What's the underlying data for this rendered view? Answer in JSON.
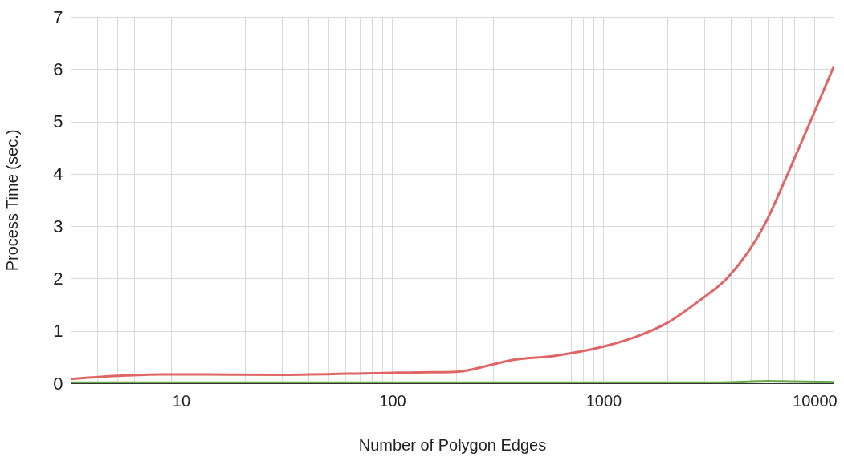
{
  "chart_data": {
    "type": "line",
    "xlabel": "Number of Polygon Edges",
    "ylabel": "Process Time (sec.)",
    "log": "x",
    "grid": true,
    "legend": false,
    "marker": "none",
    "line_style": "solid",
    "xlim": [
      3,
      12300
    ],
    "ylim": [
      0,
      7
    ],
    "xticks": [
      {
        "value": 3,
        "label": null
      },
      {
        "value": 4,
        "label": null
      },
      {
        "value": 5,
        "label": null
      },
      {
        "value": 6,
        "label": null
      },
      {
        "value": 7,
        "label": null
      },
      {
        "value": 8,
        "label": null
      },
      {
        "value": 9,
        "label": null
      },
      10,
      {
        "value": 20,
        "label": null
      },
      {
        "value": 30,
        "label": null
      },
      {
        "value": 40,
        "label": null
      },
      {
        "value": 50,
        "label": null
      },
      {
        "value": 60,
        "label": null
      },
      {
        "value": 70,
        "label": null
      },
      {
        "value": 80,
        "label": null
      },
      {
        "value": 90,
        "label": null
      },
      100,
      {
        "value": 200,
        "label": null
      },
      {
        "value": 300,
        "label": null
      },
      {
        "value": 400,
        "label": null
      },
      {
        "value": 500,
        "label": null
      },
      {
        "value": 600,
        "label": null
      },
      {
        "value": 700,
        "label": null
      },
      {
        "value": 800,
        "label": null
      },
      {
        "value": 900,
        "label": null
      },
      1000,
      {
        "value": 2000,
        "label": null
      },
      {
        "value": 3000,
        "label": null
      },
      {
        "value": 4000,
        "label": null
      },
      {
        "value": 5000,
        "label": null
      },
      {
        "value": 6000,
        "label": null
      },
      {
        "value": 7000,
        "label": null
      },
      {
        "value": 8000,
        "label": null
      },
      {
        "value": 9000,
        "label": null
      },
      10000
    ],
    "yticks": [
      0,
      1,
      2,
      3,
      4,
      5,
      6,
      7
    ],
    "series": [
      {
        "color": "#e06666",
        "x": [
          3,
          5,
          8,
          10,
          30,
          100,
          150,
          200,
          300,
          355,
          600,
          1000,
          1500,
          2000,
          2850,
          3900,
          5800,
          7650,
          9700,
          12300
        ],
        "values": [
          0.08,
          0.14,
          0.17,
          0.17,
          0.16,
          0.2,
          0.21,
          0.22,
          0.36,
          0.43,
          0.53,
          0.7,
          0.92,
          1.15,
          1.58,
          2.03,
          3.03,
          4.1,
          5.06,
          6.04
        ]
      },
      {
        "color": "#6aa84f",
        "x": [
          3,
          100,
          1000,
          3000,
          5000,
          6000,
          8000,
          12300
        ],
        "values": [
          0.01,
          0.01,
          0.01,
          0.01,
          0.03,
          0.04,
          0.03,
          0.02
        ]
      }
    ]
  }
}
